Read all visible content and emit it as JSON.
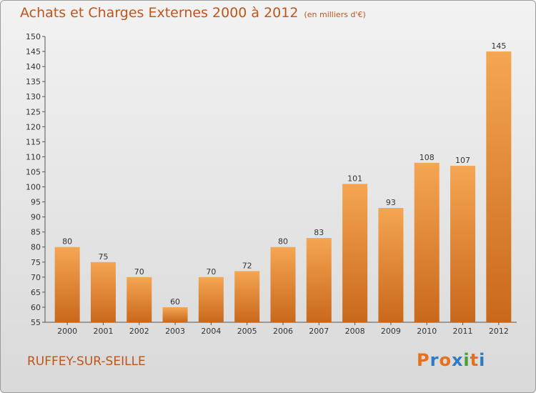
{
  "header": {
    "title": "Achats et Charges Externes 2000 à 2012",
    "subtitle": "(en milliers d'€)"
  },
  "footer": {
    "commune": "RUFFEY-SUR-SEILLE",
    "logo": [
      "P",
      "r",
      "o",
      "x",
      "i",
      "t",
      "i"
    ]
  },
  "colors": {
    "bar_light": "#f5a652",
    "bar_dark": "#c9681b",
    "accent": "#c0551a",
    "logo": [
      "#e8701a",
      "#2e7bc4",
      "#e8701a",
      "#2e7bc4",
      "#4aa02c",
      "#e8701a",
      "#2e7bc4"
    ]
  },
  "chart_data": {
    "type": "bar",
    "title": "Achats et Charges Externes 2000 à 2012",
    "subtitle": "(en milliers d'€)",
    "xlabel": "",
    "ylabel": "",
    "categories": [
      "2000",
      "2001",
      "2002",
      "2003",
      "2004",
      "2005",
      "2006",
      "2007",
      "2008",
      "2009",
      "2010",
      "2011",
      "2012"
    ],
    "values": [
      80,
      75,
      70,
      60,
      70,
      72,
      80,
      83,
      101,
      93,
      108,
      107,
      145
    ],
    "ylim": [
      55,
      150
    ],
    "yticks": [
      55,
      60,
      65,
      70,
      75,
      80,
      85,
      90,
      95,
      100,
      105,
      110,
      115,
      120,
      125,
      130,
      135,
      140,
      145,
      150
    ],
    "grid": false,
    "data_labels": true
  }
}
